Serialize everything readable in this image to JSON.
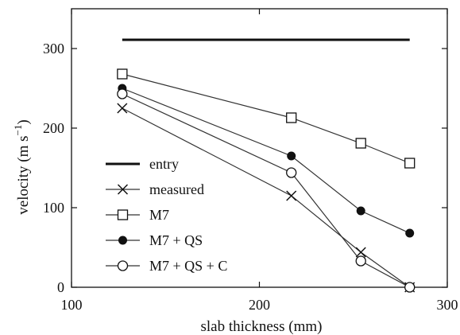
{
  "chart_data": {
    "type": "line",
    "xlabel": "slab thickness (mm)",
    "ylabel_main": "velocity (m s",
    "ylabel_sup": "−1",
    "ylabel_end": ")",
    "xlim": [
      100,
      300
    ],
    "ylim": [
      0,
      350
    ],
    "xticks": [
      100,
      200,
      300
    ],
    "yticks": [
      0,
      100,
      200,
      300
    ],
    "grid": false,
    "legend_position": "lower-left",
    "series": [
      {
        "name": "entry",
        "marker": "none",
        "x": [
          127,
          280
        ],
        "y": [
          311,
          311
        ],
        "color": "#111111"
      },
      {
        "name": "measured",
        "marker": "cross",
        "x": [
          127,
          217,
          254,
          280
        ],
        "y": [
          225,
          115,
          44,
          0
        ],
        "color": "#333333"
      },
      {
        "name": "M7",
        "marker": "square-open",
        "x": [
          127,
          217,
          254,
          280
        ],
        "y": [
          268,
          213,
          181,
          156
        ],
        "color": "#333333"
      },
      {
        "name": "M7 + QS",
        "marker": "circle-filled",
        "x": [
          127,
          217,
          254,
          280
        ],
        "y": [
          250,
          165,
          96,
          68
        ],
        "color": "#333333"
      },
      {
        "name": "M7 + QS + C",
        "marker": "circle-open",
        "x": [
          127,
          217,
          254,
          280
        ],
        "y": [
          243,
          144,
          33,
          0
        ],
        "color": "#333333"
      }
    ]
  }
}
